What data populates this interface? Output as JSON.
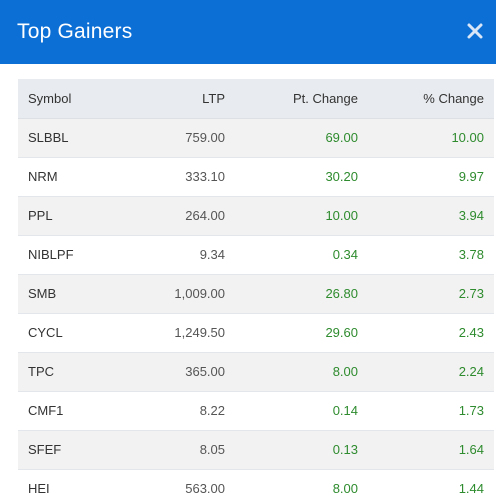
{
  "modal": {
    "title": "Top Gainers",
    "close_icon": "close-icon"
  },
  "table": {
    "headers": [
      "Symbol",
      "LTP",
      "Pt. Change",
      "% Change"
    ],
    "rows": [
      {
        "symbol": "SLBBL",
        "ltp": "759.00",
        "pt_change": "69.00",
        "pct_change": "10.00"
      },
      {
        "symbol": "NRM",
        "ltp": "333.10",
        "pt_change": "30.20",
        "pct_change": "9.97"
      },
      {
        "symbol": "PPL",
        "ltp": "264.00",
        "pt_change": "10.00",
        "pct_change": "3.94"
      },
      {
        "symbol": "NIBLPF",
        "ltp": "9.34",
        "pt_change": "0.34",
        "pct_change": "3.78"
      },
      {
        "symbol": "SMB",
        "ltp": "1,009.00",
        "pt_change": "26.80",
        "pct_change": "2.73"
      },
      {
        "symbol": "CYCL",
        "ltp": "1,249.50",
        "pt_change": "29.60",
        "pct_change": "2.43"
      },
      {
        "symbol": "TPC",
        "ltp": "365.00",
        "pt_change": "8.00",
        "pct_change": "2.24"
      },
      {
        "symbol": "CMF1",
        "ltp": "8.22",
        "pt_change": "0.14",
        "pct_change": "1.73"
      },
      {
        "symbol": "SFEF",
        "ltp": "8.05",
        "pt_change": "0.13",
        "pct_change": "1.64"
      },
      {
        "symbol": "HEI",
        "ltp": "563.00",
        "pt_change": "8.00",
        "pct_change": "1.44"
      }
    ]
  },
  "colors": {
    "header_bg": "#0c6fd6",
    "gain_text": "#2e8b2e",
    "table_header_bg": "#e8ebef"
  }
}
